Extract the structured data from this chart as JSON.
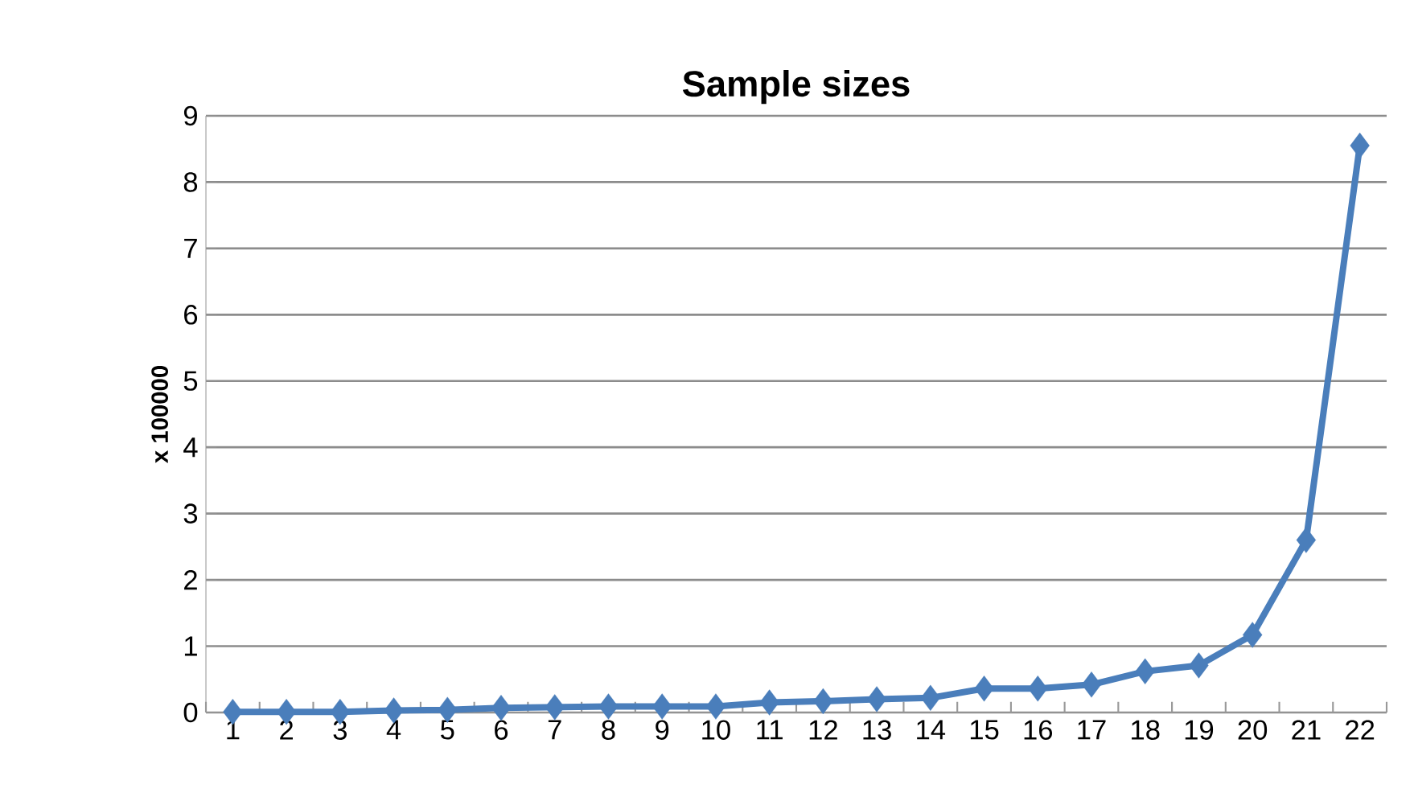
{
  "chart_data": {
    "type": "line",
    "title": "Sample sizes",
    "ylabel": "x 100000",
    "categories": [
      "1",
      "2",
      "3",
      "4",
      "5",
      "6",
      "7",
      "8",
      "9",
      "10",
      "11",
      "12",
      "13",
      "14",
      "15",
      "16",
      "17",
      "18",
      "19",
      "20",
      "21",
      "22"
    ],
    "values": [
      0.01,
      0.01,
      0.01,
      0.03,
      0.04,
      0.07,
      0.08,
      0.09,
      0.09,
      0.09,
      0.15,
      0.17,
      0.2,
      0.22,
      0.36,
      0.36,
      0.42,
      0.62,
      0.71,
      1.17,
      2.6,
      8.55
    ],
    "color": "#4a7ebb",
    "ylim": [
      0,
      9
    ],
    "yticks": [
      0,
      1,
      2,
      3,
      4,
      5,
      6,
      7,
      8,
      9
    ],
    "grid": "y",
    "marker": "diamond",
    "line_style": "solid"
  }
}
